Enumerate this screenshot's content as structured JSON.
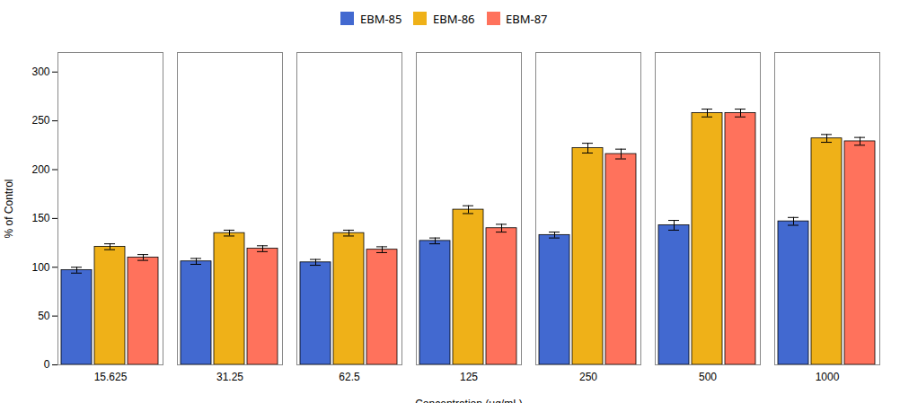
{
  "chart_data": {
    "type": "bar",
    "xlabel": "Concentration (μg/mL)",
    "ylabel": "% of Control",
    "categories": [
      "15.625",
      "31.25",
      "62.5",
      "125",
      "250",
      "500",
      "1000"
    ],
    "series": [
      {
        "name": "EBM-85",
        "values": [
          97,
          106,
          105,
          127,
          133,
          143,
          147
        ],
        "errors": [
          3,
          3,
          3,
          3,
          3,
          5,
          4
        ]
      },
      {
        "name": "EBM-86",
        "values": [
          121,
          135,
          135,
          159,
          222,
          258,
          232
        ],
        "errors": [
          3,
          3,
          3,
          4,
          5,
          4,
          4
        ]
      },
      {
        "name": "EBM-87",
        "values": [
          110,
          119,
          118,
          140,
          216,
          258,
          229
        ],
        "errors": [
          3,
          3,
          3,
          4,
          5,
          4,
          4
        ]
      }
    ],
    "ylim": [
      0,
      320
    ],
    "yticks": [
      0,
      50,
      100,
      150,
      200,
      250,
      300
    ],
    "grid": false,
    "legend": "top"
  }
}
